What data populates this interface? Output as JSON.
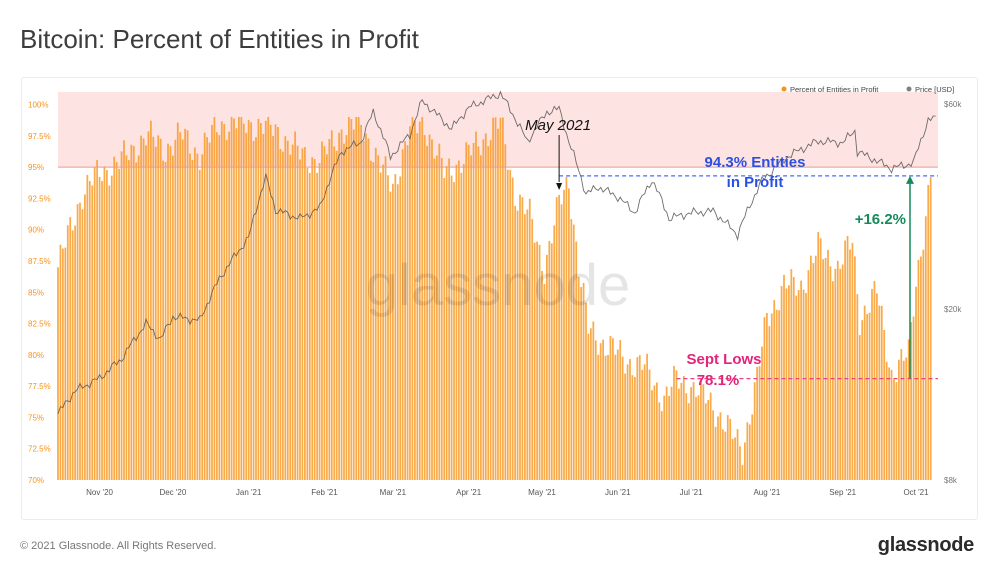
{
  "header": {
    "title": "Bitcoin: Percent of Entities in Profit"
  },
  "footer": {
    "copyright": "© 2021 Glassnode. All Rights Reserved.",
    "logo": "glassnode"
  },
  "watermark": "glassnode",
  "chart_data": {
    "type": "bar",
    "legend": {
      "placement": "top-right",
      "entries": [
        {
          "name": "Percent of Entities in Profit",
          "color": "#f7931a"
        },
        {
          "name": "Price [USD]",
          "color": "#808080"
        }
      ]
    },
    "x_ticks": [
      "Nov '20",
      "Dec '20",
      "Jan '21",
      "Feb '21",
      "Mar '21",
      "Apr '21",
      "May '21",
      "Jun '21",
      "Jul '21",
      "Aug '21",
      "Sep '21",
      "Oct '21"
    ],
    "x_range": [
      "2020-10-15",
      "2021-10-10"
    ],
    "y_left": {
      "ticks": [
        "70%",
        "72.5%",
        "75%",
        "77.5%",
        "80%",
        "82.5%",
        "85%",
        "87.5%",
        "90%",
        "92.5%",
        "95%",
        "97.5%",
        "100%"
      ],
      "min": 70,
      "max": 101
    },
    "y_right": {
      "scale": "log",
      "ticks": [
        {
          "value": 60000,
          "label": "$60k"
        },
        {
          "value": 20000,
          "label": "$20k"
        },
        {
          "value": 8000,
          "label": "$8k"
        }
      ],
      "min": 8000,
      "max": 64000
    },
    "highlight_band": {
      "from": 95,
      "to": 101,
      "color": "#fde3e1"
    },
    "reference_lines": [
      {
        "value": 95,
        "color": "#e89a9a",
        "style": "solid"
      },
      {
        "value": 94.3,
        "color": "#4a6cf7",
        "style": "dashed",
        "from": "2021-05-08"
      },
      {
        "value": 78.1,
        "color": "#e8457f",
        "style": "dashed",
        "from": "2021-06-25"
      }
    ],
    "profit_series": [
      {
        "date": "2020-10-15",
        "value": 87
      },
      {
        "date": "2020-10-20",
        "value": 90
      },
      {
        "date": "2020-10-25",
        "value": 93
      },
      {
        "date": "2020-11-01",
        "value": 94.5
      },
      {
        "date": "2020-11-10",
        "value": 95.5
      },
      {
        "date": "2020-11-20",
        "value": 97.5
      },
      {
        "date": "2020-11-28",
        "value": 96.5
      },
      {
        "date": "2020-12-05",
        "value": 97.5
      },
      {
        "date": "2020-12-12",
        "value": 96
      },
      {
        "date": "2020-12-20",
        "value": 98.5
      },
      {
        "date": "2021-01-01",
        "value": 98.5
      },
      {
        "date": "2021-01-12",
        "value": 98
      },
      {
        "date": "2021-01-22",
        "value": 96
      },
      {
        "date": "2021-01-30",
        "value": 95.5
      },
      {
        "date": "2021-02-08",
        "value": 98
      },
      {
        "date": "2021-02-16",
        "value": 98.5
      },
      {
        "date": "2021-02-24",
        "value": 95
      },
      {
        "date": "2021-03-01",
        "value": 93.5
      },
      {
        "date": "2021-03-08",
        "value": 98
      },
      {
        "date": "2021-03-14",
        "value": 98.5
      },
      {
        "date": "2021-03-22",
        "value": 94.5
      },
      {
        "date": "2021-04-01",
        "value": 96
      },
      {
        "date": "2021-04-10",
        "value": 98
      },
      {
        "date": "2021-04-14",
        "value": 98.5
      },
      {
        "date": "2021-04-20",
        "value": 93
      },
      {
        "date": "2021-04-26",
        "value": 91
      },
      {
        "date": "2021-05-02",
        "value": 87
      },
      {
        "date": "2021-05-08",
        "value": 92
      },
      {
        "date": "2021-05-12",
        "value": 94
      },
      {
        "date": "2021-05-16",
        "value": 87
      },
      {
        "date": "2021-05-20",
        "value": 82
      },
      {
        "date": "2021-05-26",
        "value": 81
      },
      {
        "date": "2021-06-05",
        "value": 79.5
      },
      {
        "date": "2021-06-12",
        "value": 79
      },
      {
        "date": "2021-06-20",
        "value": 76.5
      },
      {
        "date": "2021-06-25",
        "value": 78
      },
      {
        "date": "2021-07-01",
        "value": 77.5
      },
      {
        "date": "2021-07-10",
        "value": 76
      },
      {
        "date": "2021-07-18",
        "value": 73.5
      },
      {
        "date": "2021-07-22",
        "value": 72.5
      },
      {
        "date": "2021-07-28",
        "value": 78
      },
      {
        "date": "2021-08-01",
        "value": 83
      },
      {
        "date": "2021-08-08",
        "value": 85.5
      },
      {
        "date": "2021-08-15",
        "value": 85.5
      },
      {
        "date": "2021-08-22",
        "value": 88.5
      },
      {
        "date": "2021-08-30",
        "value": 87
      },
      {
        "date": "2021-09-05",
        "value": 89
      },
      {
        "date": "2021-09-08",
        "value": 83
      },
      {
        "date": "2021-09-15",
        "value": 85
      },
      {
        "date": "2021-09-21",
        "value": 78.5
      },
      {
        "date": "2021-09-28",
        "value": 80
      },
      {
        "date": "2021-10-01",
        "value": 86
      },
      {
        "date": "2021-10-05",
        "value": 91
      },
      {
        "date": "2021-10-07",
        "value": 94.3
      }
    ],
    "price_series": [
      {
        "date": "2020-10-15",
        "value": 11400
      },
      {
        "date": "2020-10-22",
        "value": 12900
      },
      {
        "date": "2020-11-01",
        "value": 13800
      },
      {
        "date": "2020-11-10",
        "value": 15300
      },
      {
        "date": "2020-11-20",
        "value": 18500
      },
      {
        "date": "2020-11-26",
        "value": 17000
      },
      {
        "date": "2020-12-01",
        "value": 19200
      },
      {
        "date": "2020-12-12",
        "value": 18800
      },
      {
        "date": "2020-12-20",
        "value": 23500
      },
      {
        "date": "2021-01-01",
        "value": 29300
      },
      {
        "date": "2021-01-08",
        "value": 40500
      },
      {
        "date": "2021-01-12",
        "value": 34000
      },
      {
        "date": "2021-01-22",
        "value": 32500
      },
      {
        "date": "2021-01-30",
        "value": 34300
      },
      {
        "date": "2021-02-08",
        "value": 46500
      },
      {
        "date": "2021-02-16",
        "value": 49000
      },
      {
        "date": "2021-02-21",
        "value": 57500
      },
      {
        "date": "2021-02-28",
        "value": 45200
      },
      {
        "date": "2021-03-08",
        "value": 51000
      },
      {
        "date": "2021-03-13",
        "value": 61000
      },
      {
        "date": "2021-03-25",
        "value": 52500
      },
      {
        "date": "2021-04-01",
        "value": 58800
      },
      {
        "date": "2021-04-14",
        "value": 63500
      },
      {
        "date": "2021-04-25",
        "value": 49000
      },
      {
        "date": "2021-05-03",
        "value": 57500
      },
      {
        "date": "2021-05-08",
        "value": 58500
      },
      {
        "date": "2021-05-12",
        "value": 49000
      },
      {
        "date": "2021-05-19",
        "value": 37000
      },
      {
        "date": "2021-05-24",
        "value": 38500
      },
      {
        "date": "2021-06-01",
        "value": 36500
      },
      {
        "date": "2021-06-08",
        "value": 33500
      },
      {
        "date": "2021-06-15",
        "value": 40000
      },
      {
        "date": "2021-06-22",
        "value": 32500
      },
      {
        "date": "2021-07-01",
        "value": 33500
      },
      {
        "date": "2021-07-10",
        "value": 33800
      },
      {
        "date": "2021-07-20",
        "value": 29800
      },
      {
        "date": "2021-07-30",
        "value": 39800
      },
      {
        "date": "2021-08-10",
        "value": 45500
      },
      {
        "date": "2021-08-22",
        "value": 49200
      },
      {
        "date": "2021-09-01",
        "value": 48800
      },
      {
        "date": "2021-09-06",
        "value": 52000
      },
      {
        "date": "2021-09-07",
        "value": 46500
      },
      {
        "date": "2021-09-21",
        "value": 42500
      },
      {
        "date": "2021-09-30",
        "value": 43800
      },
      {
        "date": "2021-10-06",
        "value": 55000
      },
      {
        "date": "2021-10-09",
        "value": 55500
      }
    ],
    "annotations": [
      {
        "id": "may",
        "text": "May 2021",
        "date": "2021-05-08",
        "color": "#111111"
      },
      {
        "id": "entities",
        "lines": [
          "94.3% Entities",
          "in Profit"
        ],
        "color": "#2b50e0"
      },
      {
        "id": "change",
        "text": "+16.2%",
        "color": "#158a5b",
        "date": "2021-10-01",
        "from": 78.1,
        "to": 94.3
      },
      {
        "id": "sept",
        "lines": [
          "Sept Lows",
          "78.1%"
        ],
        "color": "#e3247a"
      }
    ]
  }
}
